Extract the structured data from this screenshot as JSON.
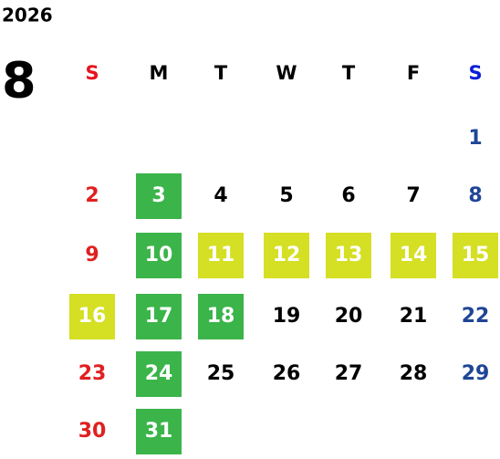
{
  "year": "2026",
  "month": "8",
  "weekdays": [
    "S",
    "M",
    "T",
    "W",
    "T",
    "F",
    "S"
  ],
  "weekday_colors": [
    "#e8141e",
    "#000000",
    "#000000",
    "#000000",
    "#000000",
    "#000000",
    "#0a1fd6"
  ],
  "day_colors": [
    "#e02020",
    "#000000",
    "#000000",
    "#000000",
    "#000000",
    "#000000",
    "#1f4595"
  ],
  "highlight_text_color": "#ffffff",
  "weeks": [
    [
      null,
      null,
      null,
      null,
      null,
      null,
      1
    ],
    [
      2,
      {
        "day": 3,
        "fill": "#3bb44a"
      },
      4,
      5,
      6,
      7,
      8
    ],
    [
      9,
      {
        "day": 10,
        "fill": "#3bb44a"
      },
      {
        "day": 11,
        "fill": "#d5df23"
      },
      {
        "day": 12,
        "fill": "#d5df23"
      },
      {
        "day": 13,
        "fill": "#d5df23"
      },
      {
        "day": 14,
        "fill": "#d5df23"
      },
      {
        "day": 15,
        "fill": "#d5df23"
      }
    ],
    [
      {
        "day": 16,
        "fill": "#d5df23"
      },
      {
        "day": 17,
        "fill": "#3bb44a"
      },
      {
        "day": 18,
        "fill": "#3bb44a"
      },
      19,
      20,
      21,
      22
    ],
    [
      23,
      {
        "day": 24,
        "fill": "#3bb44a"
      },
      25,
      26,
      27,
      28,
      29
    ],
    [
      30,
      {
        "day": 31,
        "fill": "#3bb44a"
      }
    ]
  ]
}
